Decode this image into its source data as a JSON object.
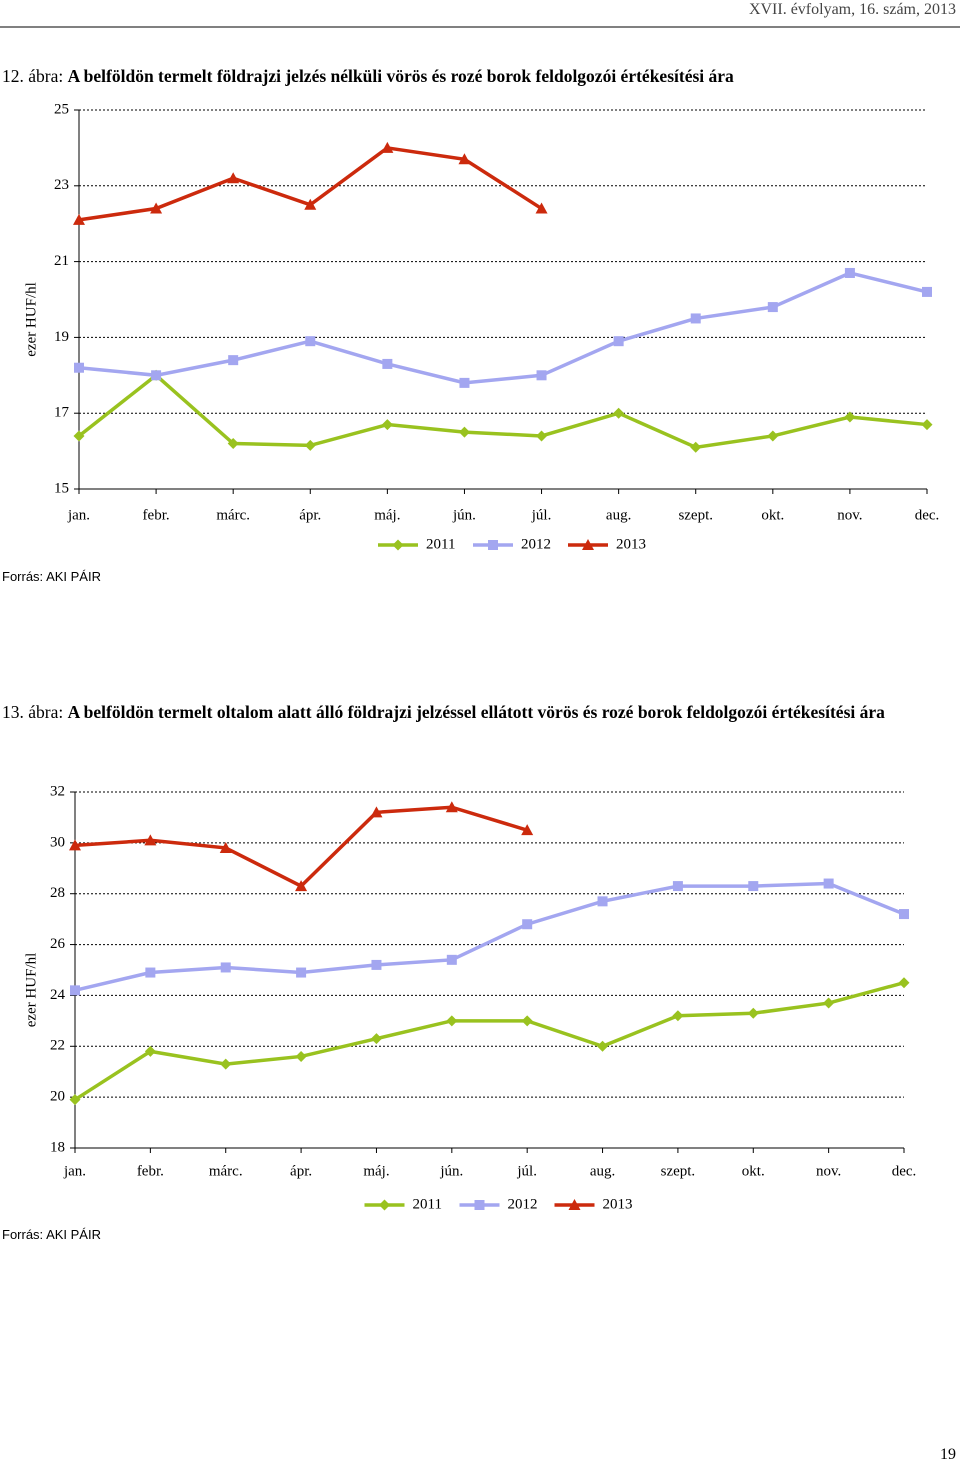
{
  "header": "XVII. évfolyam, 16. szám, 2013",
  "page_number": "19",
  "chart_data": [
    {
      "type": "line",
      "figure_label": "12. ábra:",
      "title": "A belföldön termelt földrajzi jelzés nélküli vörös és rozé borok feldolgozói értékesítési ára",
      "y_label": "ezer HUF/hl",
      "source": "Forrás: AKI PÁIR",
      "categories": [
        "jan.",
        "febr.",
        "márc.",
        "ápr.",
        "máj.",
        "jún.",
        "júl.",
        "aug.",
        "szept.",
        "okt.",
        "nov.",
        "dec."
      ],
      "ylim": [
        15,
        25
      ],
      "yticks": [
        15,
        17,
        19,
        21,
        23,
        25
      ],
      "grid": true,
      "legend": "bottom",
      "series": [
        {
          "name": "2011",
          "color": "#99c21f",
          "marker": "diamond",
          "values": [
            16.4,
            18.0,
            16.2,
            16.15,
            16.7,
            16.5,
            16.4,
            17.0,
            16.1,
            16.4,
            16.9,
            16.7
          ]
        },
        {
          "name": "2012",
          "color": "#a3a6f0",
          "marker": "square",
          "values": [
            18.2,
            18.0,
            18.4,
            18.9,
            18.3,
            17.8,
            18.0,
            18.9,
            19.5,
            19.8,
            20.7,
            20.2
          ]
        },
        {
          "name": "2013",
          "color": "#cc2a0d",
          "marker": "triangle",
          "values": [
            22.1,
            22.4,
            23.2,
            22.5,
            24.0,
            23.7,
            22.4,
            null,
            null,
            null,
            null,
            null
          ]
        }
      ]
    },
    {
      "type": "line",
      "figure_label": "13. ábra:",
      "title": "A belföldön termelt oltalom alatt álló földrajzi jelzéssel ellátott vörös és rozé borok feldolgozói értékesítési ára",
      "y_label": "ezer HUF/hl",
      "source": "Forrás: AKI PÁIR",
      "categories": [
        "jan.",
        "febr.",
        "márc.",
        "ápr.",
        "máj.",
        "jún.",
        "júl.",
        "aug.",
        "szept.",
        "okt.",
        "nov.",
        "dec."
      ],
      "ylim": [
        18,
        32
      ],
      "yticks": [
        18,
        20,
        22,
        24,
        26,
        28,
        30,
        32
      ],
      "grid": true,
      "legend": "bottom",
      "series": [
        {
          "name": "2011",
          "color": "#99c21f",
          "marker": "diamond",
          "values": [
            19.9,
            21.8,
            21.3,
            21.6,
            22.3,
            23.0,
            23.0,
            22.0,
            23.2,
            23.3,
            23.7,
            24.5
          ]
        },
        {
          "name": "2012",
          "color": "#a3a6f0",
          "marker": "square",
          "values": [
            24.2,
            24.9,
            25.1,
            24.9,
            25.2,
            25.4,
            26.8,
            27.7,
            28.3,
            28.3,
            28.4,
            27.2
          ]
        },
        {
          "name": "2013",
          "color": "#cc2a0d",
          "marker": "triangle",
          "values": [
            29.9,
            30.1,
            29.8,
            28.3,
            31.2,
            31.4,
            30.5,
            null,
            null,
            null,
            null,
            null
          ]
        }
      ]
    }
  ]
}
